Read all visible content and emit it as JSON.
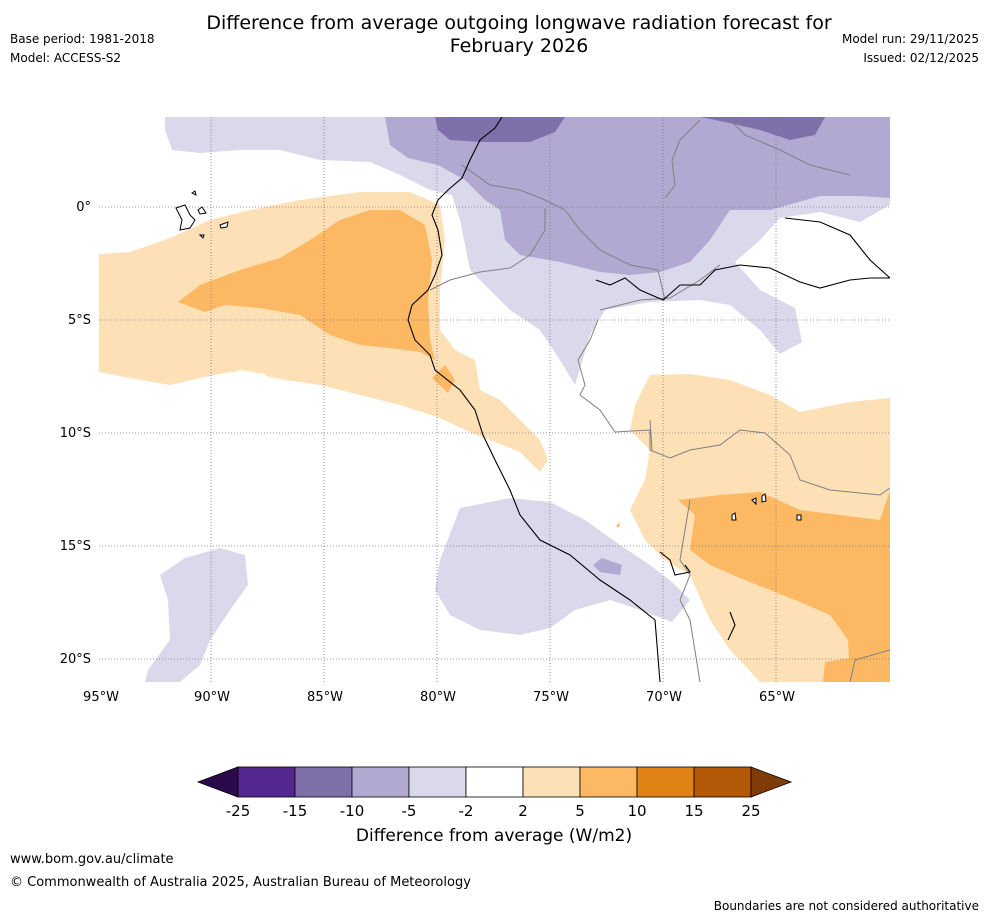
{
  "header": {
    "title_line1": "Difference from average outgoing longwave radiation forecast for",
    "title_line2": "February 2026",
    "base_period": "Base period: 1981-2018",
    "model": "Model: ACCESS-S2",
    "model_run": "Model run: 29/11/2025",
    "issued": "Issued: 02/12/2025"
  },
  "map": {
    "lon_labels": [
      "95°W",
      "90°W",
      "85°W",
      "80°W",
      "75°W",
      "70°W",
      "65°W"
    ],
    "lat_labels": [
      "0°",
      "5°S",
      "10°S",
      "15°S",
      "20°S"
    ],
    "lon_values": [
      -95,
      -90,
      -85,
      -80,
      -75,
      -70,
      -65
    ],
    "lat_values": [
      0,
      -5,
      -10,
      -15,
      -20
    ],
    "extent": {
      "lon_min": -95,
      "lon_max": -60,
      "lat_min": -21,
      "lat_max": 4
    },
    "colors": {
      "neg25": "#2a0a4a",
      "neg15_25": "#54278f",
      "neg10_15": "#8070aa",
      "neg5_10": "#b1a9d2",
      "neg2_5": "#d9d9eb",
      "neutral": "#ffffff",
      "pos2_5": "#fee0b6",
      "pos5_10": "#fdb863",
      "pos10_15": "#e08214",
      "pos15_25": "#b35806",
      "pos25": "#7f3b08"
    }
  },
  "colorbar": {
    "ticks": [
      "-25",
      "-15",
      "-10",
      "-5",
      "-2",
      "2",
      "5",
      "10",
      "15",
      "25"
    ],
    "label": "Difference from average (W/m2)"
  },
  "footer": {
    "website": "www.bom.gov.au/climate",
    "copyright": "© Commonwealth of Australia 2025, Australian Bureau of Meteorology",
    "disclaimer": "Boundaries are not considered authoritative"
  }
}
